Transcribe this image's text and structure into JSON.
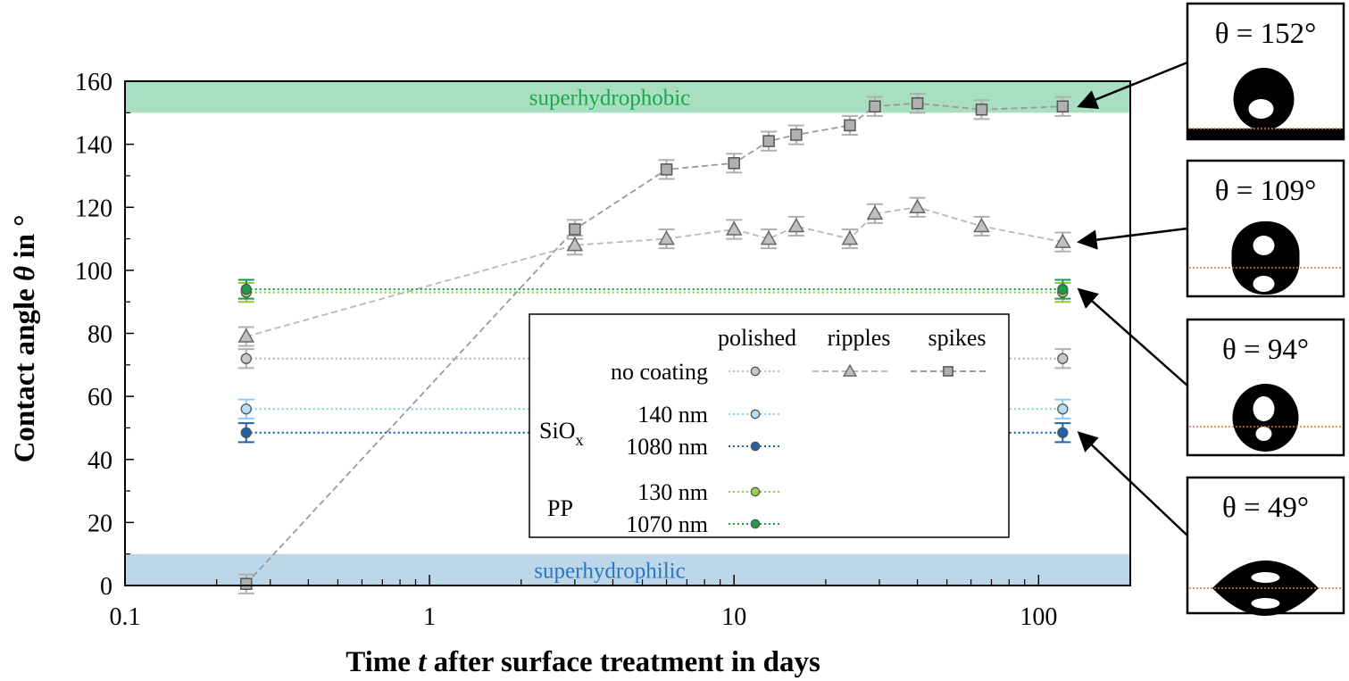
{
  "chart_data": {
    "type": "scatter",
    "title": "",
    "xlabel": "Time t after surface treatment in days",
    "xlabel_parts": {
      "pre": "Time ",
      "var": "t",
      "post": " after surface treatment in days"
    },
    "ylabel": "Contact angle θ in °",
    "ylabel_parts": {
      "pre": "Contact angle ",
      "var": "θ",
      "post": " in °"
    },
    "xscale": "log",
    "xlim": [
      0.1,
      200
    ],
    "ylim": [
      0,
      160
    ],
    "xticks": [
      0.1,
      1,
      10,
      100
    ],
    "xtick_labels": [
      "0.1",
      "1",
      "10",
      "100"
    ],
    "yticks": [
      0,
      20,
      40,
      60,
      80,
      100,
      120,
      140,
      160
    ],
    "ytick_labels": [
      "0",
      "20",
      "40",
      "60",
      "80",
      "100",
      "120",
      "140",
      "160"
    ],
    "bands": [
      {
        "label": "superhydrophobic",
        "from": 150,
        "to": 160,
        "fill": "#a8dfc0",
        "text_color": "#1aa84a"
      },
      {
        "label": "superhydrophilic",
        "from": 0,
        "to": 10,
        "fill": "#bcd6ea",
        "text_color": "#2878c0"
      }
    ],
    "series": [
      {
        "name": "spikes",
        "marker": "square",
        "line": "dashed",
        "color": "#9a9a9a",
        "fill": "#b0b0b0",
        "x": [
          0.25,
          3,
          6,
          10,
          13,
          16,
          24,
          29,
          40,
          65,
          120
        ],
        "y": [
          0.5,
          113,
          132,
          134,
          141,
          143,
          146,
          152,
          153,
          151,
          152
        ],
        "err": 3
      },
      {
        "name": "ripples",
        "marker": "triangle",
        "line": "dashed",
        "color": "#b8b8b8",
        "fill": "#c0c0c0",
        "x": [
          0.25,
          3,
          6,
          10,
          13,
          16,
          24,
          29,
          40,
          65,
          120
        ],
        "y": [
          79,
          108,
          110,
          113,
          110,
          114,
          110,
          118,
          120,
          114,
          109
        ],
        "err": 3
      },
      {
        "name": "no coating polished",
        "marker": "circle",
        "line": "dotted",
        "color": "#b8b8b8",
        "fill": "#c8c8c8",
        "x": [
          0.25,
          120
        ],
        "y": [
          72,
          72
        ],
        "err": 3
      },
      {
        "name": "SiOx 140 nm",
        "marker": "circle",
        "line": "dotted",
        "color": "#86cdf0",
        "fill": "#b4e0f6",
        "x": [
          0.25,
          120
        ],
        "y": [
          56,
          56
        ],
        "err": 3
      },
      {
        "name": "SiOx 1080 nm",
        "marker": "circle",
        "line": "dotted",
        "color": "#1f63a6",
        "fill": "#1f63a6",
        "x": [
          0.25,
          120
        ],
        "y": [
          48.5,
          48.5
        ],
        "err": 3
      },
      {
        "name": "PP 130 nm",
        "marker": "circle",
        "line": "dotted",
        "color": "#8fcc3e",
        "fill": "#9bd14a",
        "x": [
          0.25,
          120
        ],
        "y": [
          93,
          93
        ],
        "err": 3
      },
      {
        "name": "PP 1070 nm",
        "marker": "circle",
        "line": "dotted",
        "color": "#1a9c4a",
        "fill": "#1a9c4a",
        "x": [
          0.25,
          120
        ],
        "y": [
          94,
          94
        ],
        "err": 3
      }
    ],
    "legend": {
      "position": "center-right",
      "col_headers": [
        "polished",
        "ripples",
        "spikes"
      ],
      "rows": [
        {
          "group": "",
          "label": "no coating",
          "series": [
            "no coating polished",
            "ripples",
            "spikes"
          ]
        },
        {
          "group": "SiO",
          "group_sub": "x",
          "label": "140 nm",
          "series": [
            "SiOx 140 nm"
          ]
        },
        {
          "group": "",
          "label": "1080 nm",
          "series": [
            "SiOx 1080 nm"
          ]
        },
        {
          "group": "PP",
          "label": "130 nm",
          "series": [
            "PP 130 nm"
          ]
        },
        {
          "group": "",
          "label": "1070 nm",
          "series": [
            "PP 1070 nm"
          ]
        }
      ]
    },
    "insets": [
      {
        "angle_text": "θ = 152°",
        "value": 152,
        "points_to": {
          "series": "spikes",
          "x": 120,
          "y": 152
        }
      },
      {
        "angle_text": "θ = 109°",
        "value": 109,
        "points_to": {
          "series": "ripples",
          "x": 120,
          "y": 109
        }
      },
      {
        "angle_text": "θ = 94°",
        "value": 94,
        "points_to": {
          "series": "PP 1070 nm",
          "x": 120,
          "y": 94
        }
      },
      {
        "angle_text": "θ = 49°",
        "value": 49,
        "points_to": {
          "series": "SiOx 1080 nm",
          "x": 120,
          "y": 48.5
        }
      }
    ]
  }
}
